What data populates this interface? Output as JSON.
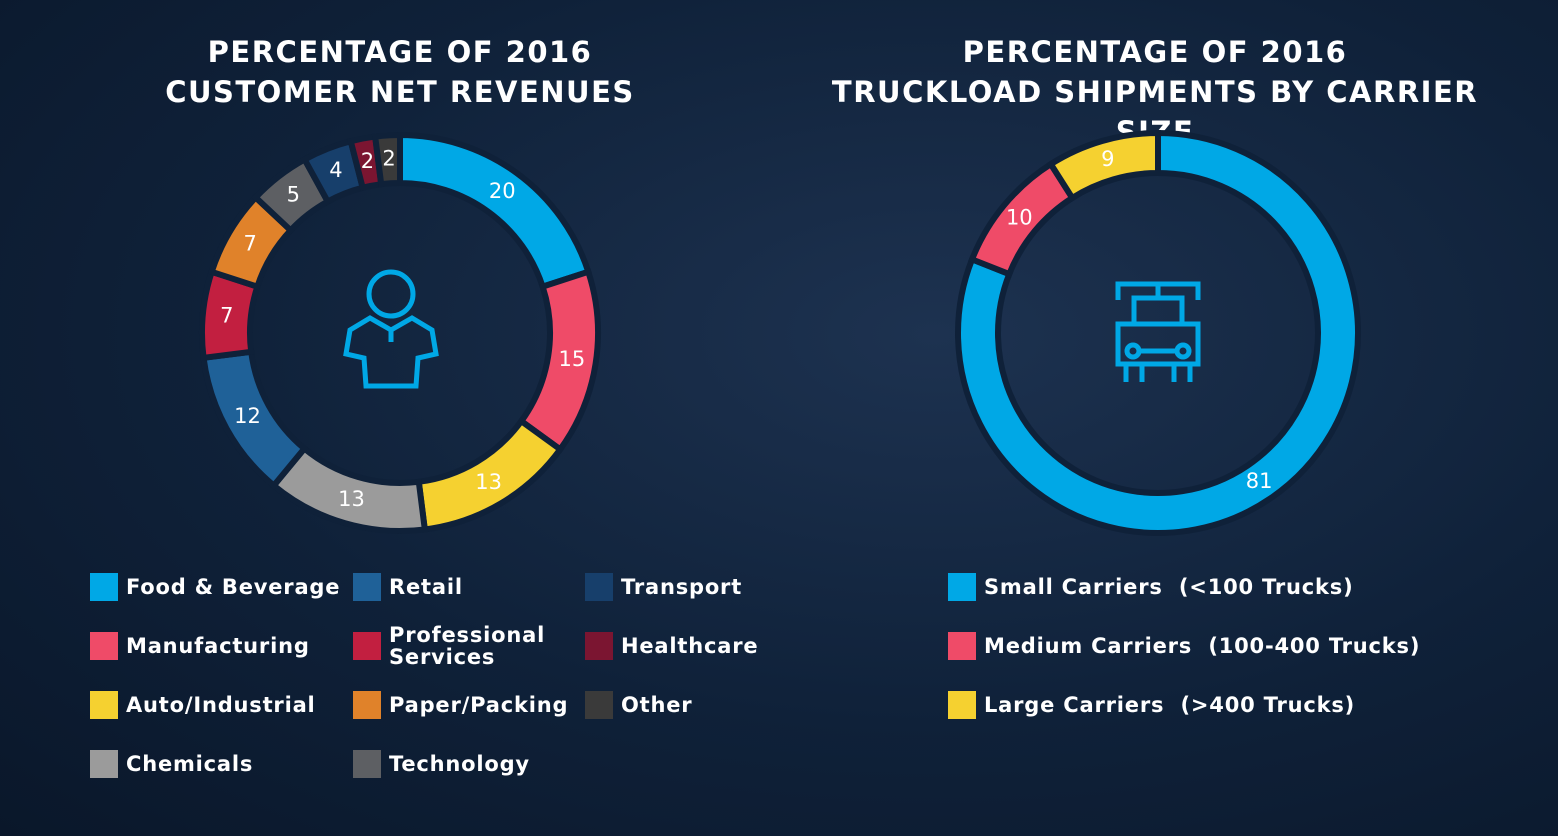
{
  "chart_data": [
    {
      "type": "pie",
      "title": "PERCENTAGE OF 2016\nCUSTOMER NET REVENUES",
      "categories": [
        "Food & Beverage",
        "Manufacturing",
        "Auto/Industrial",
        "Chemicals",
        "Retail",
        "Professional Services",
        "Paper/Packing",
        "Technology",
        "Transport",
        "Healthcare",
        "Other"
      ],
      "values": [
        20,
        15,
        13,
        13,
        12,
        7,
        7,
        5,
        4,
        2,
        2
      ],
      "colors": [
        "#00a8e6",
        "#ef4b68",
        "#f5d130",
        "#9b9b9b",
        "#1f6198",
        "#c21f40",
        "#e0822a",
        "#5d5f63",
        "#173f6b",
        "#7b1531",
        "#3a3a3a"
      ]
    },
    {
      "type": "pie",
      "title": "PERCENTAGE OF 2016\nTRUCKLOAD SHIPMENTS BY CARRIER SIZE",
      "categories": [
        "Small Carriers  (<100 Trucks)",
        "Medium Carriers  (100-400 Trucks)",
        "Large Carriers  (>400 Trucks)"
      ],
      "values": [
        81,
        10,
        9
      ],
      "colors": [
        "#00a8e6",
        "#ef4b68",
        "#f5d130"
      ]
    }
  ]
}
